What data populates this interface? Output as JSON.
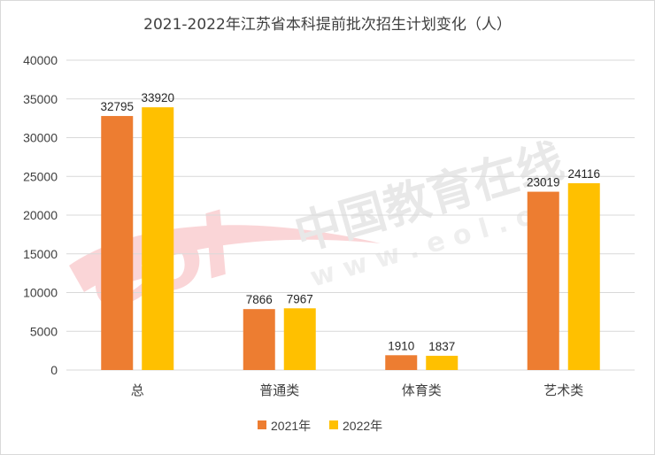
{
  "watermark": {
    "logo_text": "eol",
    "name": "中国教育在线",
    "url": "w w w . e o l . c n"
  },
  "chart_data": {
    "type": "bar",
    "title": "2021-2022年江苏省本科提前批次招生计划变化（人）",
    "categories": [
      "总",
      "普通类",
      "体育类",
      "艺术类"
    ],
    "series": [
      {
        "name": "2021年",
        "color": "#ED7D31",
        "values": [
          32795,
          7866,
          1910,
          23019
        ]
      },
      {
        "name": "2022年",
        "color": "#FFC000",
        "values": [
          33920,
          7967,
          1837,
          24116
        ]
      }
    ],
    "ylim": [
      0,
      40000
    ],
    "yticks": [
      "0",
      "5000",
      "10000",
      "15000",
      "20000",
      "25000",
      "30000",
      "35000",
      "40000"
    ],
    "grid": true,
    "legend": "bottom"
  }
}
